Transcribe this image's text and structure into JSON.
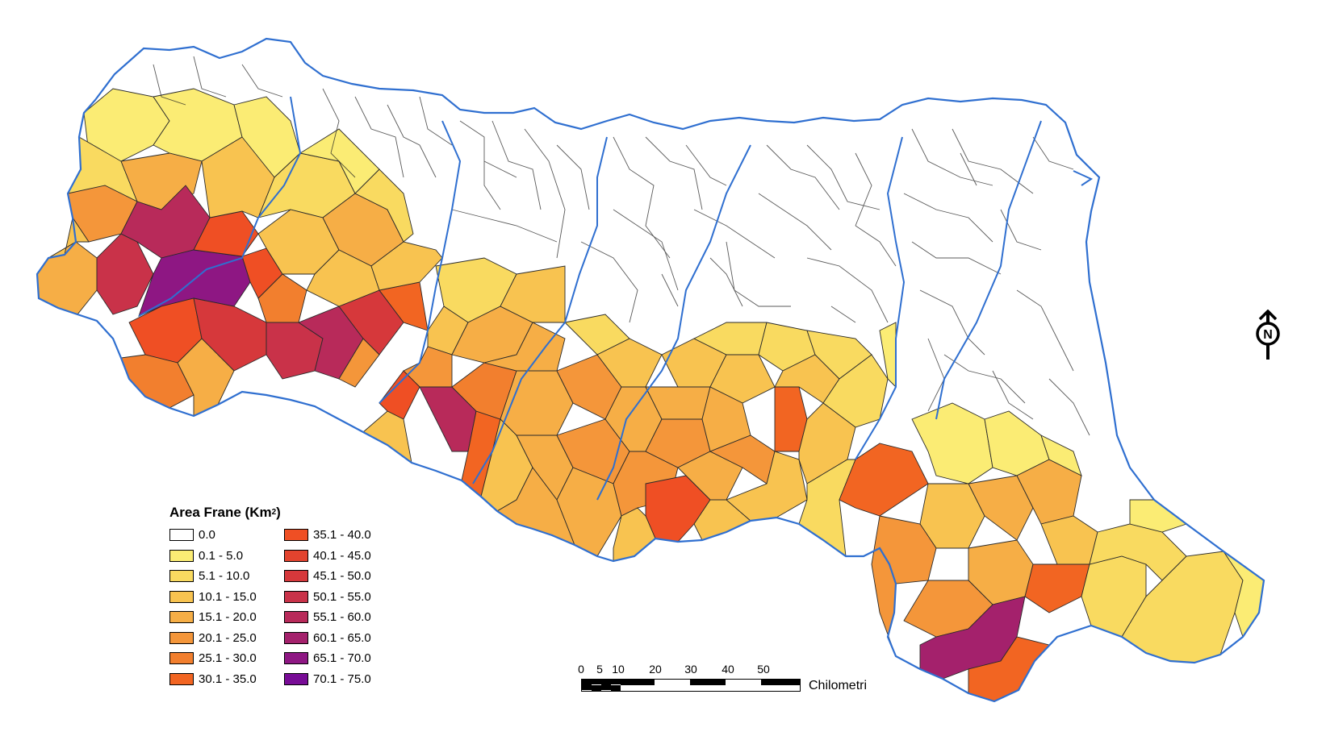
{
  "legend": {
    "title": "Area Frane (Km",
    "title_sup": "2",
    "title_close": ")",
    "classes": [
      {
        "label": "0.0",
        "color": "#ffffff"
      },
      {
        "label": "0.1 - 5.0",
        "color": "#fbec74"
      },
      {
        "label": "5.1 - 10.0",
        "color": "#f9da60"
      },
      {
        "label": "10.1 - 15.0",
        "color": "#f8c350"
      },
      {
        "label": "15.1 - 20.0",
        "color": "#f6ae46"
      },
      {
        "label": "20.1 - 25.0",
        "color": "#f4963a"
      },
      {
        "label": "25.1 - 30.0",
        "color": "#f27f2e"
      },
      {
        "label": "30.1 - 35.0",
        "color": "#f26522"
      },
      {
        "label": "35.1 - 40.0",
        "color": "#ef4f24"
      },
      {
        "label": "40.1 - 45.0",
        "color": "#e3432e"
      },
      {
        "label": "45.1 - 50.0",
        "color": "#d6383b"
      },
      {
        "label": "50.1 - 55.0",
        "color": "#c93249"
      },
      {
        "label": "55.1 - 60.0",
        "color": "#b82a5a"
      },
      {
        "label": "60.1 - 65.0",
        "color": "#a4216c"
      },
      {
        "label": "65.1 - 70.0",
        "color": "#8e1783"
      },
      {
        "label": "70.1 - 75.0",
        "color": "#780c96"
      }
    ]
  },
  "scalebar": {
    "ticks": [
      "0",
      "5",
      "10",
      "20",
      "30",
      "40",
      "50"
    ],
    "unit": "Chilometri"
  },
  "north_arrow": {
    "label": "N",
    "icon": "north-arrow-icon"
  },
  "colors": {
    "boundary": "#2f6fd0",
    "municipal_line": "#222222"
  }
}
